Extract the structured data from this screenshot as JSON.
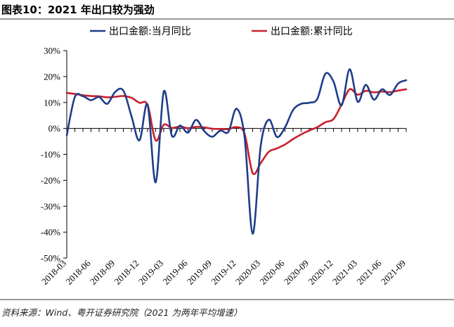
{
  "figure": {
    "title": "图表10：2021 年出口较为强劲",
    "source": "资料来源：Wind、粤开证券研究院（2021 为两年平均增速）"
  },
  "chart_data": {
    "type": "line",
    "ylim": [
      -50,
      30
    ],
    "yticks": [
      30,
      20,
      10,
      0,
      -10,
      -20,
      -30,
      -40,
      -50
    ],
    "ytick_labels": [
      "30%",
      "20%",
      "10%",
      "0%",
      "-10%",
      "-20%",
      "-30%",
      "-40%",
      "-50%"
    ],
    "xlabels": [
      "2018-03",
      "2018-06",
      "2018-09",
      "2018-12",
      "2019-03",
      "2019-06",
      "2019-09",
      "2019-12",
      "2020-03",
      "2020-06",
      "2020-09",
      "2020-12",
      "2021-03",
      "2021-06",
      "2021-09"
    ],
    "x": [
      "2018-03",
      "2018-04",
      "2018-05",
      "2018-06",
      "2018-07",
      "2018-08",
      "2018-09",
      "2018-10",
      "2018-11",
      "2018-12",
      "2019-01",
      "2019-02",
      "2019-03",
      "2019-04",
      "2019-05",
      "2019-06",
      "2019-07",
      "2019-08",
      "2019-09",
      "2019-10",
      "2019-11",
      "2019-12",
      "2020-01",
      "2020-02",
      "2020-03",
      "2020-04",
      "2020-05",
      "2020-06",
      "2020-07",
      "2020-08",
      "2020-09",
      "2020-10",
      "2020-11",
      "2020-12",
      "2021-01",
      "2021-02",
      "2021-03",
      "2021-04",
      "2021-05",
      "2021-06",
      "2021-07",
      "2021-08",
      "2021-09"
    ],
    "legend_position": "top",
    "grid": false,
    "series": [
      {
        "name": "出口金额:当月同比",
        "color": "#1f3d8a",
        "values": [
          -2.7,
          12.1,
          12.4,
          10.9,
          12.1,
          9.5,
          14.1,
          14.6,
          4.8,
          -4.6,
          9.1,
          -20.8,
          14.2,
          -2.8,
          1.1,
          -1.6,
          3.3,
          -1.0,
          -3.2,
          -0.8,
          -1.3,
          7.6,
          -3.3,
          -40.6,
          -6.6,
          3.4,
          -3.3,
          0.4,
          7.1,
          9.5,
          9.9,
          11.4,
          21.1,
          18.1,
          8.9,
          22.8,
          10.3,
          16.8,
          11.1,
          15.1,
          12.9,
          17.3,
          18.6
        ]
      },
      {
        "name": "出口金额:累计同比",
        "color": "#c8202c",
        "values": [
          13.7,
          13.3,
          12.8,
          12.5,
          12.4,
          12.0,
          12.2,
          12.5,
          11.8,
          9.9,
          9.1,
          -4.6,
          1.4,
          0.2,
          0.7,
          0.1,
          0.6,
          0.4,
          -0.1,
          -0.2,
          -0.3,
          0.5,
          -2.0,
          -17.2,
          -13.3,
          -9.0,
          -7.7,
          -6.2,
          -4.1,
          -2.3,
          -0.8,
          0.5,
          2.4,
          3.6,
          9.2,
          15.1,
          13.0,
          14.5,
          13.9,
          14.2,
          14.0,
          14.6,
          15.1
        ]
      }
    ]
  }
}
